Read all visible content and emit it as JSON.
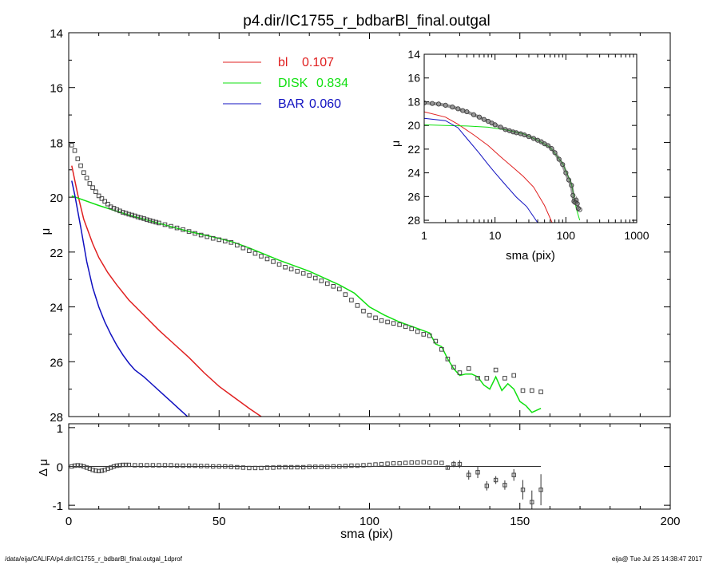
{
  "chart_data": [
    {
      "type": "line",
      "title": "p4.dir/IC1755_r_bdbarBl_final.outgal",
      "ylabel": "μ",
      "xlabel": "",
      "xlim": [
        0,
        200
      ],
      "ylim": [
        28,
        14
      ],
      "x_ticks": [
        0,
        50,
        100,
        150,
        200
      ],
      "y_ticks": [
        14,
        16,
        18,
        20,
        22,
        24,
        26,
        28
      ],
      "legend": [
        {
          "name": "bl",
          "value": "0.107",
          "color": "#e02020"
        },
        {
          "name": "DISK",
          "value": "0.834",
          "color": "#10e010"
        },
        {
          "name": "BAR",
          "value": "0.060",
          "color": "#1010c0"
        }
      ],
      "series": [
        {
          "name": "bl",
          "color": "#e02020",
          "x": [
            1,
            3,
            5,
            8,
            10,
            13,
            16,
            20,
            25,
            30,
            35,
            40,
            45,
            50,
            55,
            60,
            64
          ],
          "y": [
            18.85,
            19.9,
            20.8,
            21.7,
            22.2,
            22.75,
            23.2,
            23.75,
            24.3,
            24.85,
            25.35,
            25.85,
            26.4,
            26.9,
            27.3,
            27.7,
            28.0
          ]
        },
        {
          "name": "DISK",
          "color": "#10e010",
          "x": [
            1,
            10,
            20,
            30,
            40,
            50,
            55,
            60,
            70,
            80,
            90,
            95,
            100,
            105,
            110,
            115,
            120,
            122,
            124,
            126,
            128,
            130,
            132,
            134,
            136,
            138,
            140,
            142,
            144,
            146,
            148,
            150,
            152,
            154,
            157
          ],
          "y": [
            19.95,
            20.3,
            20.65,
            20.95,
            21.25,
            21.5,
            21.65,
            21.85,
            22.3,
            22.7,
            23.2,
            23.5,
            24.0,
            24.3,
            24.55,
            24.75,
            24.95,
            25.35,
            25.45,
            25.9,
            26.25,
            26.5,
            26.45,
            26.45,
            26.55,
            26.85,
            27.0,
            26.55,
            27.05,
            26.8,
            27.0,
            27.45,
            27.6,
            27.85,
            27.7
          ]
        },
        {
          "name": "BAR",
          "color": "#1010c0",
          "x": [
            1,
            2,
            4,
            6,
            8,
            10,
            12,
            14,
            16,
            18,
            20,
            22,
            25,
            28,
            31,
            34,
            37,
            40
          ],
          "y": [
            19.4,
            19.9,
            21.1,
            22.35,
            23.3,
            24.0,
            24.55,
            25.0,
            25.4,
            25.75,
            26.05,
            26.3,
            26.55,
            26.85,
            27.15,
            27.45,
            27.75,
            28.05
          ]
        },
        {
          "name": "data",
          "color": "#444444",
          "marker": "square",
          "x": [
            1,
            2,
            3,
            4,
            5,
            6,
            7,
            8,
            9,
            10,
            11,
            12,
            13,
            14,
            15,
            16,
            17,
            18,
            19,
            20,
            21,
            22,
            23,
            24,
            25,
            26,
            27,
            28,
            29,
            30,
            32,
            34,
            36,
            38,
            40,
            42,
            44,
            46,
            48,
            50,
            52,
            54,
            56,
            58,
            60,
            62,
            64,
            66,
            68,
            70,
            72,
            74,
            76,
            78,
            80,
            82,
            84,
            86,
            88,
            90,
            92,
            94,
            96,
            98,
            100,
            102,
            104,
            106,
            108,
            110,
            112,
            114,
            116,
            118,
            120,
            122,
            124,
            126,
            128,
            130,
            133,
            136,
            139,
            142,
            145,
            148,
            151,
            154,
            157
          ],
          "y": [
            18.1,
            18.3,
            18.6,
            18.85,
            19.1,
            19.3,
            19.5,
            19.65,
            19.8,
            19.95,
            20.05,
            20.15,
            20.25,
            20.35,
            20.4,
            20.45,
            20.5,
            20.55,
            20.58,
            20.62,
            20.65,
            20.68,
            20.72,
            20.75,
            20.78,
            20.82,
            20.85,
            20.88,
            20.91,
            20.94,
            21.0,
            21.06,
            21.12,
            21.18,
            21.25,
            21.32,
            21.38,
            21.44,
            21.5,
            21.55,
            21.6,
            21.65,
            21.75,
            21.85,
            21.95,
            22.05,
            22.15,
            22.25,
            22.35,
            22.45,
            22.55,
            22.62,
            22.7,
            22.78,
            22.85,
            22.95,
            23.05,
            23.15,
            23.25,
            23.35,
            23.55,
            23.75,
            23.95,
            24.15,
            24.3,
            24.4,
            24.5,
            24.55,
            24.6,
            24.65,
            24.72,
            24.8,
            24.9,
            25.0,
            25.05,
            25.25,
            25.55,
            25.9,
            26.2,
            26.4,
            26.25,
            26.6,
            26.6,
            26.3,
            26.6,
            26.5,
            27.05,
            27.05,
            27.1
          ]
        }
      ]
    },
    {
      "type": "scatter",
      "title": "",
      "ylabel": "Δ μ",
      "xlabel": "sma (pix)",
      "xlim": [
        0,
        200
      ],
      "ylim": [
        -1.1,
        1.1
      ],
      "x_ticks": [
        0,
        50,
        100,
        150,
        200
      ],
      "y_ticks": [
        1,
        0,
        -1
      ],
      "x": [
        1,
        2,
        3,
        4,
        5,
        6,
        7,
        8,
        9,
        10,
        11,
        12,
        13,
        14,
        15,
        16,
        17,
        18,
        19,
        20,
        22,
        24,
        26,
        28,
        30,
        32,
        34,
        36,
        38,
        40,
        42,
        44,
        46,
        48,
        50,
        52,
        54,
        56,
        58,
        60,
        62,
        64,
        66,
        68,
        70,
        72,
        74,
        76,
        78,
        80,
        82,
        84,
        86,
        88,
        90,
        92,
        94,
        96,
        98,
        100,
        102,
        104,
        106,
        108,
        110,
        112,
        114,
        116,
        118,
        120,
        122,
        124,
        126,
        128,
        130,
        133,
        136,
        139,
        142,
        145,
        148,
        151,
        154,
        157
      ],
      "y": [
        0.0,
        0.02,
        0.03,
        0.02,
        0.0,
        -0.03,
        -0.06,
        -0.09,
        -0.11,
        -0.12,
        -0.11,
        -0.09,
        -0.06,
        -0.03,
        0.0,
        0.02,
        0.03,
        0.04,
        0.04,
        0.04,
        0.03,
        0.03,
        0.03,
        0.03,
        0.03,
        0.03,
        0.03,
        0.02,
        0.02,
        0.02,
        0.02,
        0.01,
        0.01,
        0.0,
        0.0,
        0.0,
        -0.01,
        -0.02,
        -0.03,
        -0.04,
        -0.04,
        -0.04,
        -0.03,
        -0.03,
        -0.02,
        -0.02,
        -0.02,
        -0.02,
        -0.02,
        -0.01,
        -0.01,
        -0.01,
        -0.01,
        0.0,
        0.0,
        0.01,
        0.02,
        0.02,
        0.03,
        0.04,
        0.05,
        0.06,
        0.07,
        0.08,
        0.08,
        0.09,
        0.1,
        0.1,
        0.11,
        0.1,
        0.1,
        0.09,
        -0.03,
        0.06,
        0.06,
        -0.22,
        -0.15,
        -0.5,
        -0.35,
        -0.48,
        -0.22,
        -0.6,
        -0.92,
        -0.6
      ],
      "yerr": [
        0,
        0,
        0,
        0,
        0,
        0,
        0,
        0,
        0,
        0,
        0,
        0,
        0,
        0,
        0,
        0,
        0,
        0,
        0,
        0,
        0,
        0,
        0,
        0,
        0,
        0,
        0,
        0,
        0,
        0,
        0,
        0,
        0,
        0,
        0,
        0,
        0,
        0,
        0,
        0,
        0,
        0,
        0,
        0,
        0,
        0,
        0,
        0,
        0,
        0,
        0,
        0,
        0,
        0,
        0,
        0,
        0,
        0,
        0,
        0,
        0,
        0,
        0,
        0,
        0,
        0,
        0,
        0,
        0,
        0,
        0,
        0,
        0.05,
        0.08,
        0.1,
        0.12,
        0.15,
        0.12,
        0.1,
        0.12,
        0.15,
        0.25,
        0.3,
        0.4
      ],
      "reference_line": {
        "y": 0,
        "xlim": [
          0,
          157
        ]
      }
    },
    {
      "type": "line",
      "title": "",
      "ylabel": "μ",
      "xlabel": "sma (pix)",
      "x_scale": "log",
      "xlim": [
        1,
        1000
      ],
      "ylim": [
        28.2,
        14
      ],
      "x_ticks": [
        1,
        10,
        100,
        1000
      ],
      "y_ticks": [
        14,
        16,
        18,
        20,
        22,
        24,
        26,
        28
      ],
      "series": [
        {
          "name": "bl",
          "color": "#e02020",
          "x": [
            1,
            2,
            3,
            5,
            8,
            12,
            18,
            25,
            35,
            50,
            64
          ],
          "y": [
            18.85,
            19.3,
            19.9,
            20.8,
            21.7,
            22.65,
            23.55,
            24.3,
            25.2,
            26.75,
            28.2
          ]
        },
        {
          "name": "DISK",
          "color": "#10e010",
          "x": [
            1,
            2,
            4,
            8,
            15,
            25,
            40,
            60,
            90,
            120,
            140,
            157
          ],
          "y": [
            19.95,
            20.0,
            20.05,
            20.15,
            20.4,
            20.7,
            21.25,
            21.85,
            23.2,
            24.95,
            27.0,
            28.0
          ]
        },
        {
          "name": "BAR",
          "color": "#1010c0",
          "x": [
            1,
            2,
            3,
            4,
            6,
            8,
            10,
            14,
            20,
            28,
            40
          ],
          "y": [
            19.4,
            19.6,
            20.2,
            21.1,
            22.35,
            23.3,
            24.0,
            25.0,
            26.05,
            26.85,
            28.2
          ]
        },
        {
          "name": "data",
          "color": "#444444",
          "marker": "circle",
          "x": [
            1,
            1.3,
            1.6,
            2,
            2.5,
            3,
            3.5,
            4,
            5,
            6,
            7,
            8,
            9,
            10,
            12,
            14,
            16,
            18,
            20,
            23,
            26,
            30,
            35,
            40,
            45,
            50,
            56,
            63,
            70,
            80,
            90,
            100,
            110,
            120,
            126,
            130,
            135,
            140,
            145,
            150,
            157
          ],
          "y": [
            18.1,
            18.15,
            18.2,
            18.3,
            18.45,
            18.6,
            18.75,
            18.85,
            19.1,
            19.3,
            19.5,
            19.65,
            19.8,
            19.95,
            20.15,
            20.35,
            20.45,
            20.55,
            20.62,
            20.7,
            20.8,
            20.94,
            21.1,
            21.25,
            21.38,
            21.55,
            21.7,
            21.95,
            22.3,
            22.85,
            23.3,
            24.0,
            24.6,
            25.05,
            25.9,
            26.4,
            26.5,
            26.3,
            26.6,
            27.0,
            27.1
          ]
        }
      ]
    }
  ],
  "footer": {
    "left": "/data/eija/CALIFA/p4.dir/IC1755_r_bdbarBl_final.outgal_1dprof",
    "right": "eija@  Tue Jul 25 14:38:47 2017"
  }
}
